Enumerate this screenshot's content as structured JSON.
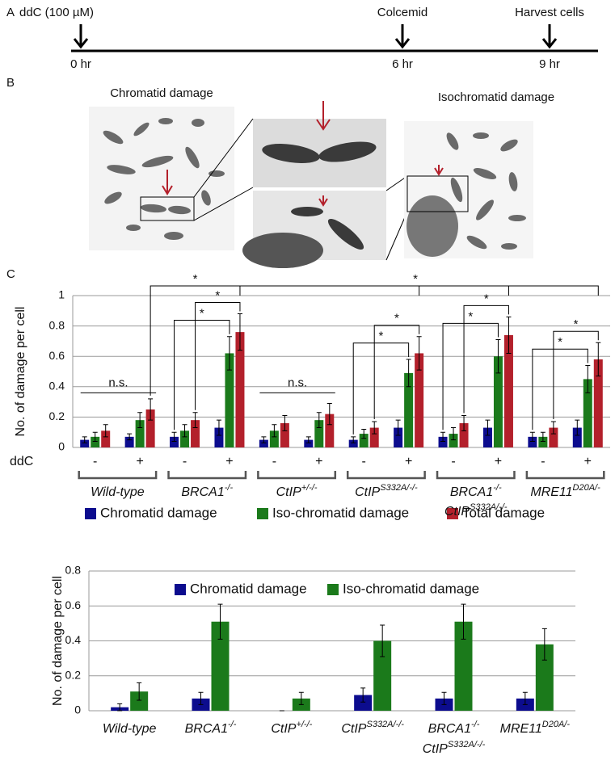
{
  "panel_labels": [
    "A",
    "B",
    "C"
  ],
  "timeline": {
    "events": [
      {
        "label": "ddC (100 µM)",
        "time": "0 hr"
      },
      {
        "label": "Colcemid",
        "time": "6 hr"
      },
      {
        "label": "Harvest cells",
        "time": "9 hr"
      }
    ]
  },
  "images": {
    "left_title": "Chromatid damage",
    "right_title": "Isochromatid damage"
  },
  "chart_data": [
    {
      "type": "bar",
      "ylabel": "No. of damage per cell",
      "xlabel": "ddC",
      "categories": [
        "-",
        "+",
        "-",
        "+",
        "-",
        "+",
        "-",
        "+",
        "-",
        "+",
        "-",
        "+"
      ],
      "groups": [
        {
          "lines": [
            {
              "base": "Wild-type"
            }
          ]
        },
        {
          "lines": [
            {
              "base": "BRCA1",
              "sup": "-/-"
            }
          ]
        },
        {
          "lines": [
            {
              "base": "CtIP",
              "sup": "+/-/-"
            }
          ]
        },
        {
          "lines": [
            {
              "base": "CtIP",
              "sup": "S332A/-/-"
            }
          ]
        },
        {
          "lines": [
            {
              "base": "BRCA1",
              "sup": "-/-"
            },
            {
              "base": "CtIP",
              "sup": "S332A/-/-"
            }
          ]
        },
        {
          "lines": [
            {
              "base": "MRE11",
              "sup": "D20A/-"
            }
          ]
        }
      ],
      "series": [
        {
          "name": "Chromatid damage",
          "color": "#0c0c8e",
          "values": [
            0.05,
            0.07,
            0.07,
            0.13,
            0.05,
            0.05,
            0.05,
            0.13,
            0.07,
            0.13,
            0.07,
            0.13
          ],
          "errors": [
            0.02,
            0.02,
            0.03,
            0.05,
            0.02,
            0.02,
            0.02,
            0.05,
            0.03,
            0.05,
            0.03,
            0.05
          ]
        },
        {
          "name": "Iso-chromatid damage",
          "color": "#1b7a1b",
          "values": [
            0.07,
            0.18,
            0.11,
            0.62,
            0.11,
            0.18,
            0.09,
            0.49,
            0.09,
            0.6,
            0.07,
            0.45
          ],
          "errors": [
            0.03,
            0.05,
            0.04,
            0.11,
            0.04,
            0.05,
            0.03,
            0.09,
            0.04,
            0.11,
            0.03,
            0.09
          ]
        },
        {
          "name": "Total damage",
          "color": "#b3202b",
          "values": [
            0.11,
            0.25,
            0.18,
            0.76,
            0.16,
            0.22,
            0.13,
            0.62,
            0.16,
            0.74,
            0.13,
            0.58
          ],
          "errors": [
            0.04,
            0.07,
            0.05,
            0.12,
            0.05,
            0.07,
            0.04,
            0.11,
            0.05,
            0.12,
            0.04,
            0.11
          ]
        }
      ],
      "ylim": [
        0,
        1
      ],
      "yticks": [
        0,
        0.2,
        0.4,
        0.6,
        0.8,
        1
      ],
      "grid": true,
      "annotations": [
        "n.s.",
        "n.s.",
        "*",
        "*",
        "*",
        "*",
        "*",
        "*",
        "*",
        "*",
        "*",
        "*"
      ]
    },
    {
      "type": "bar",
      "ylabel": "No. of damage per cell",
      "categories": [
        {
          "lines": [
            {
              "base": "Wild-type"
            }
          ]
        },
        {
          "lines": [
            {
              "base": "BRCA1",
              "sup": "-/-"
            }
          ]
        },
        {
          "lines": [
            {
              "base": "CtIP",
              "sup": "+/-/-"
            }
          ]
        },
        {
          "lines": [
            {
              "base": "CtIP",
              "sup": "S332A/-/-"
            }
          ]
        },
        {
          "lines": [
            {
              "base": "BRCA1",
              "sup": "-/-"
            },
            {
              "base": "CtIP",
              "sup": "S332A/-/-"
            }
          ]
        },
        {
          "lines": [
            {
              "base": "MRE11",
              "sup": "D20A/-"
            }
          ]
        }
      ],
      "series": [
        {
          "name": "Chromatid damage",
          "color": "#0c0c8e",
          "values": [
            0.02,
            0.07,
            0,
            0.09,
            0.07,
            0.07
          ],
          "errors": [
            0.02,
            0.035,
            0,
            0.04,
            0.035,
            0.035
          ]
        },
        {
          "name": "Iso-chromatid damage",
          "color": "#1b7a1b",
          "values": [
            0.11,
            0.51,
            0.07,
            0.4,
            0.51,
            0.38
          ],
          "errors": [
            0.05,
            0.1,
            0.035,
            0.09,
            0.1,
            0.09
          ]
        }
      ],
      "ylim": [
        0,
        0.8
      ],
      "yticks": [
        0,
        0.2,
        0.4,
        0.6,
        0.8
      ],
      "grid": true
    }
  ]
}
